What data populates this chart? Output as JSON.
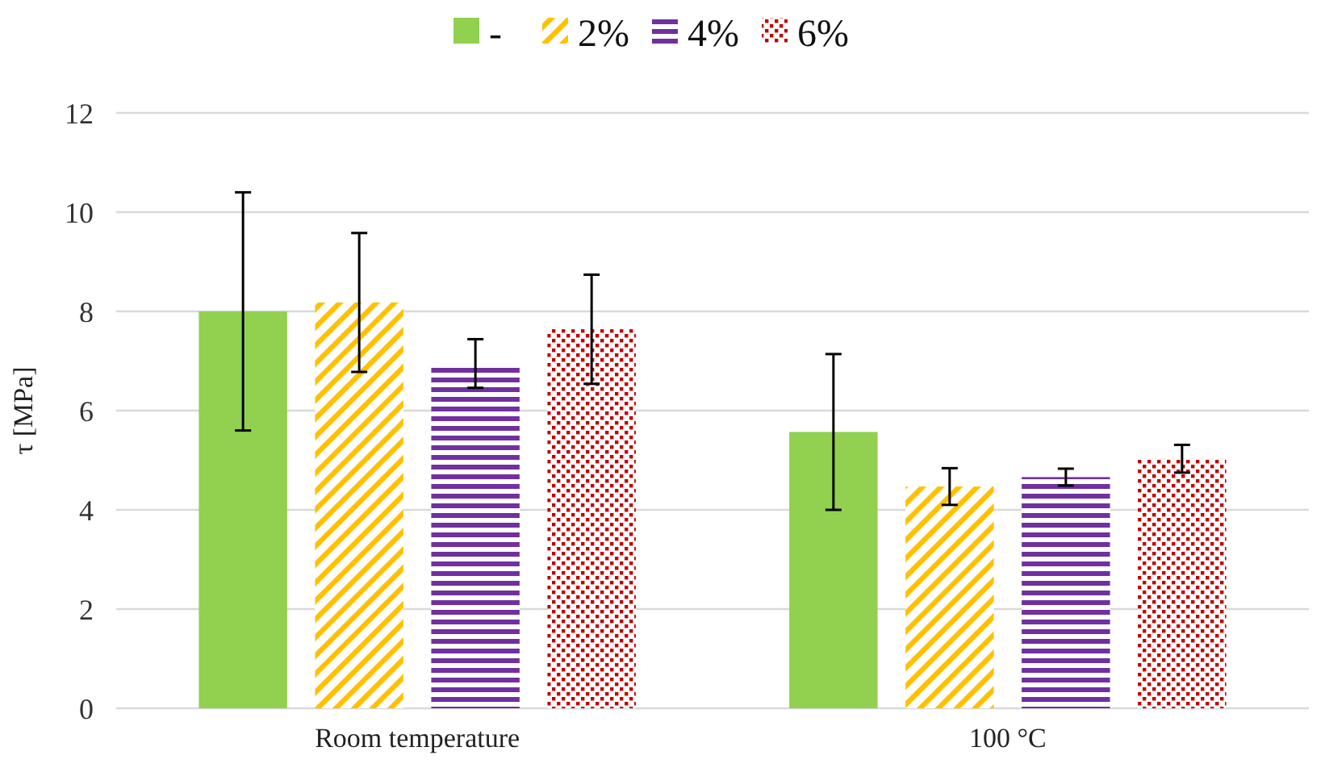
{
  "chart_data": {
    "type": "bar",
    "categories": [
      "Room temperature",
      "100 °C"
    ],
    "ylabel": "τ [MPa]",
    "ylim": [
      0,
      12
    ],
    "yticks": [
      0,
      2,
      4,
      6,
      8,
      10,
      12
    ],
    "grid": "y",
    "legend": "top",
    "series": [
      {
        "name": "-",
        "color": "#92d050",
        "values": [
          8.0,
          5.57
        ],
        "errors": [
          2.4,
          1.57
        ]
      },
      {
        "name": "2%",
        "color": "#ffc000",
        "values": [
          8.18,
          4.47
        ],
        "errors": [
          1.4,
          0.37
        ]
      },
      {
        "name": "4%",
        "color": "#7030a0",
        "values": [
          6.95,
          4.66
        ],
        "errors": [
          0.49,
          0.17
        ]
      },
      {
        "name": "6%",
        "color": "#c00000",
        "values": [
          7.64,
          5.03
        ],
        "errors": [
          1.1,
          0.28
        ]
      }
    ]
  }
}
